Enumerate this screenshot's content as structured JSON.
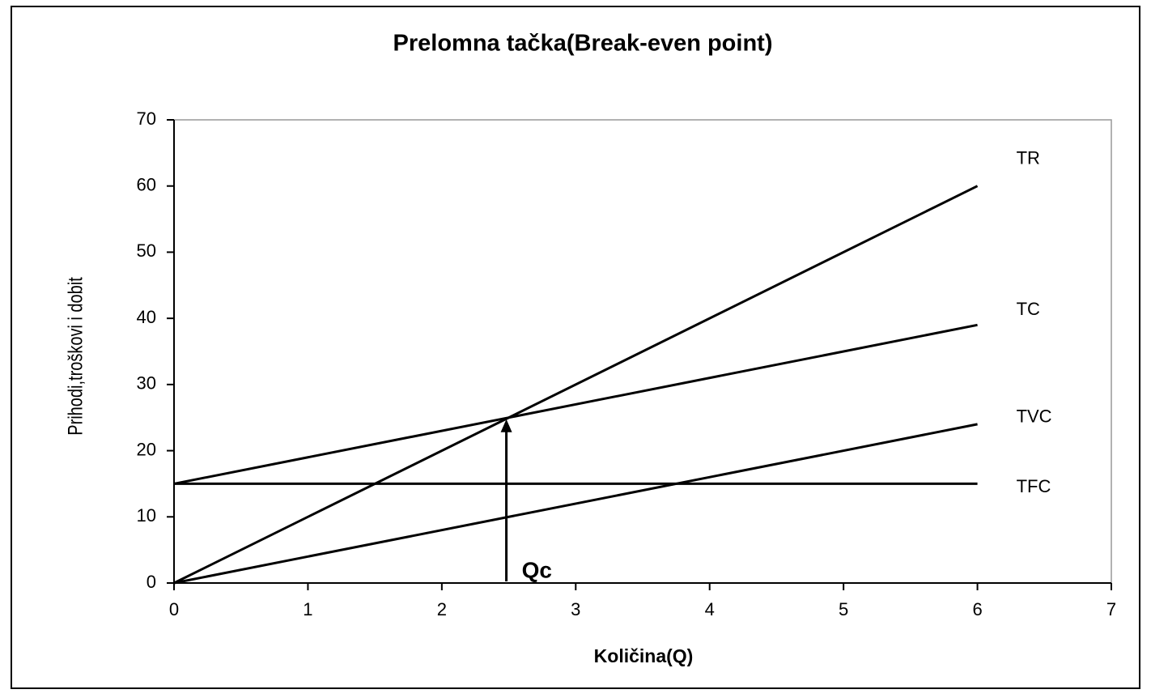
{
  "chart_data": {
    "type": "line",
    "title": "Prelomna tačka(Break-even point)",
    "xlabel": "Količina(Q)",
    "ylabel": "Prihodi,troškovi i dobit",
    "x": [
      0,
      6
    ],
    "series": [
      {
        "name": "TR",
        "color": "#000000",
        "values": [
          0,
          60
        ]
      },
      {
        "name": "TC",
        "color": "#000000",
        "values": [
          15,
          39
        ]
      },
      {
        "name": "TVC",
        "color": "#000000",
        "values": [
          0,
          24
        ]
      },
      {
        "name": "TFC",
        "color": "#000000",
        "values": [
          15,
          15
        ]
      }
    ],
    "annotation": {
      "text": "Qc",
      "x": 2.5,
      "y": 25
    },
    "xlim": [
      0,
      7
    ],
    "xticks": [
      0,
      1,
      2,
      3,
      4,
      5,
      6,
      7
    ],
    "ylim": [
      0,
      70
    ],
    "yticks": [
      0,
      10,
      20,
      30,
      40,
      50,
      60,
      70
    ],
    "grid": false
  }
}
